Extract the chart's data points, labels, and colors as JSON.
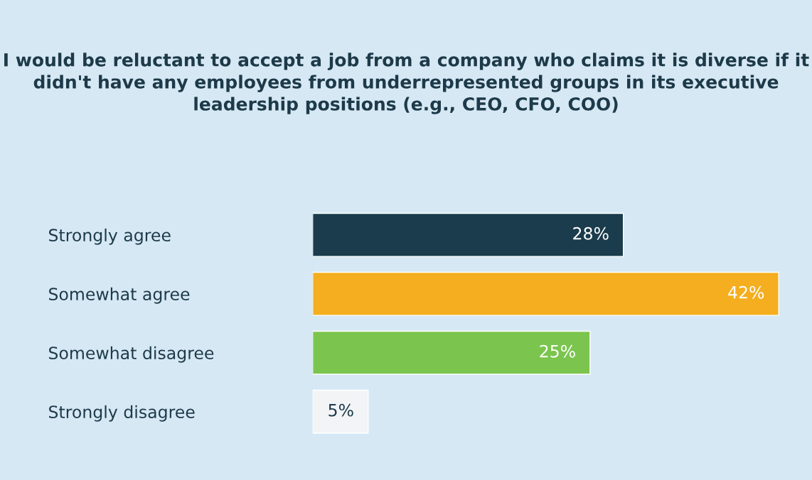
{
  "chart_data": {
    "type": "bar",
    "orientation": "horizontal",
    "title": "I would be reluctant to accept a job from a company who claims it is diverse if it didn't have any employees from underrepresented groups in its executive leadership positions (e.g., CEO, CFO, COO)",
    "categories": [
      "Strongly agree",
      "Somewhat agree",
      "Somewhat disagree",
      "Strongly disagree"
    ],
    "values": [
      28,
      42,
      25,
      5
    ],
    "colors": [
      "#1a3c4c",
      "#f4ae1f",
      "#7bc54e",
      "#f2f4f6"
    ],
    "data_labels": true,
    "value_labels": [
      "28%",
      "42%",
      "25%",
      "5%"
    ],
    "grid": false,
    "legend": false
  }
}
